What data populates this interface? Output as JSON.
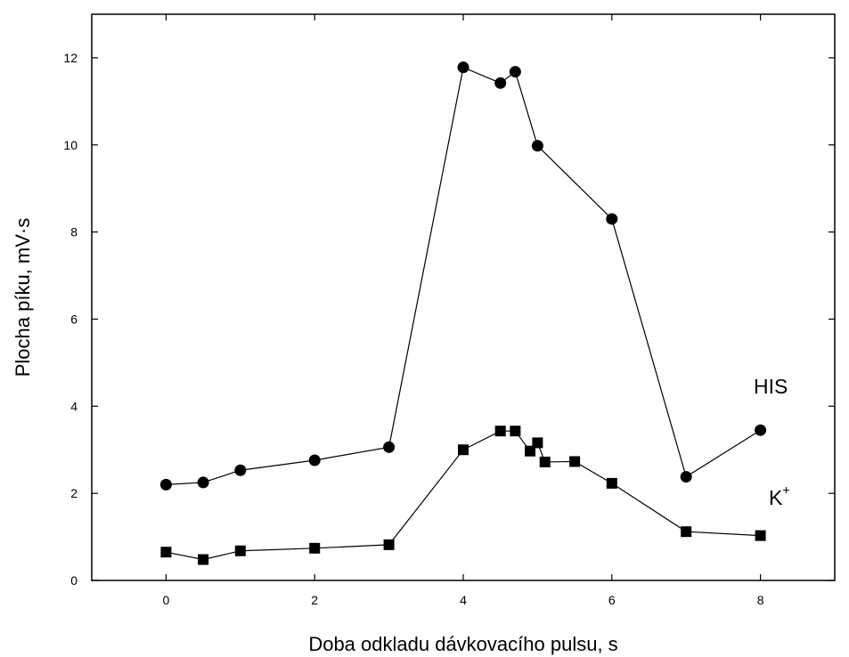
{
  "chart_data": {
    "type": "line",
    "title": "",
    "xlabel": "Doba odkladu dávkovacího pulsu, s",
    "ylabel": "Plocha píku, mV·s",
    "xlim": [
      -1,
      9
    ],
    "ylim": [
      0,
      13
    ],
    "xticks": [
      0,
      2,
      4,
      6,
      8
    ],
    "yticks": [
      0,
      2,
      4,
      6,
      8,
      10,
      12
    ],
    "grid": false,
    "series": [
      {
        "name": "HIS",
        "marker": "circle",
        "color": "#000000",
        "x": [
          0,
          0.5,
          1,
          2,
          3,
          4,
          4.5,
          4.7,
          5,
          6,
          7,
          8
        ],
        "y": [
          2.2,
          2.25,
          2.53,
          2.76,
          3.06,
          11.78,
          11.42,
          11.68,
          9.98,
          8.3,
          2.38,
          3.45
        ]
      },
      {
        "name": "K",
        "name_sup": "+",
        "marker": "square",
        "color": "#000000",
        "x": [
          0,
          0.5,
          1,
          2,
          3,
          4,
          4.5,
          4.7,
          4.9,
          5,
          5.1,
          5.5,
          6,
          7,
          8
        ],
        "y": [
          0.65,
          0.48,
          0.68,
          0.74,
          0.82,
          3.0,
          3.43,
          3.43,
          2.97,
          3.16,
          2.72,
          2.73,
          2.23,
          1.12,
          1.03
        ]
      }
    ]
  }
}
